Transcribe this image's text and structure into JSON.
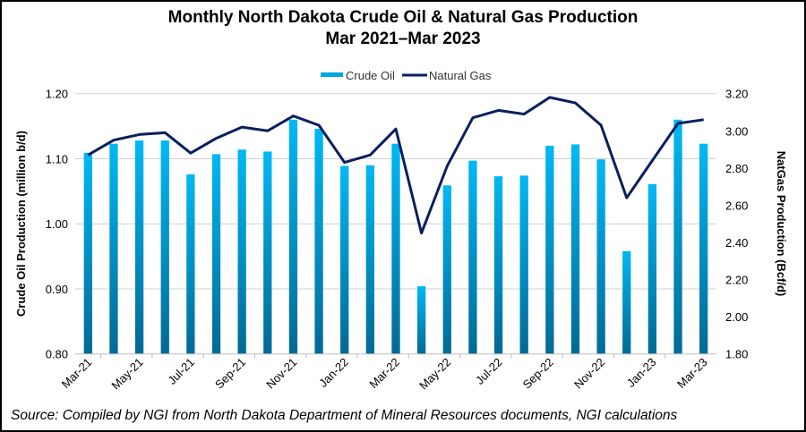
{
  "chart_data": {
    "type": "bar+line",
    "title": "Monthly North Dakota Crude Oil & Natural Gas Production",
    "subtitle": "Mar 2021–Mar 2023",
    "categories": [
      "Mar-21",
      "Apr-21",
      "May-21",
      "Jun-21",
      "Jul-21",
      "Aug-21",
      "Sep-21",
      "Oct-21",
      "Nov-21",
      "Dec-21",
      "Jan-22",
      "Feb-22",
      "Mar-22",
      "Apr-22",
      "May-22",
      "Jun-22",
      "Jul-22",
      "Aug-22",
      "Sep-22",
      "Oct-22",
      "Nov-22",
      "Dec-22",
      "Jan-23",
      "Feb-23",
      "Mar-23"
    ],
    "tick_labels": [
      "Mar-21",
      "May-21",
      "Jul-21",
      "Sep-21",
      "Nov-21",
      "Jan-22",
      "Mar-22",
      "May-22",
      "Jul-22",
      "Sep-22",
      "Nov-22",
      "Jan-23",
      "Mar-23"
    ],
    "series": [
      {
        "name": "Crude Oil",
        "type": "bar",
        "axis": "left",
        "color": "#00b0f0",
        "values": [
          1.109,
          1.123,
          1.128,
          1.128,
          1.076,
          1.107,
          1.114,
          1.111,
          1.16,
          1.146,
          1.089,
          1.09,
          1.123,
          0.904,
          1.059,
          1.097,
          1.073,
          1.074,
          1.12,
          1.122,
          1.099,
          0.958,
          1.061,
          1.16,
          1.123
        ]
      },
      {
        "name": "Natural Gas",
        "type": "line",
        "axis": "right",
        "color": "#0a1f5c",
        "values": [
          2.87,
          2.95,
          2.98,
          2.99,
          2.88,
          2.96,
          3.02,
          3.0,
          3.08,
          3.03,
          2.83,
          2.87,
          3.01,
          2.45,
          2.81,
          3.07,
          3.11,
          3.09,
          3.18,
          3.15,
          3.03,
          2.64,
          2.84,
          3.04,
          3.06
        ]
      }
    ],
    "ylabel": "Crude Oil Production (million b/d)",
    "y2label": "NatGas Production (Bcf/d)",
    "ylim": [
      0.8,
      1.2
    ],
    "yticks": [
      "0.80",
      "0.90",
      "1.00",
      "1.10",
      "1.20"
    ],
    "y2lim": [
      1.8,
      3.2
    ],
    "y2ticks": [
      "1.80",
      "2.00",
      "2.20",
      "2.40",
      "2.60",
      "2.80",
      "3.00",
      "3.20"
    ],
    "grid": true,
    "legend": "top-center"
  },
  "source": "Source: Compiled by NGI from North Dakota Department of Mineral Resources documents, NGI calculations"
}
